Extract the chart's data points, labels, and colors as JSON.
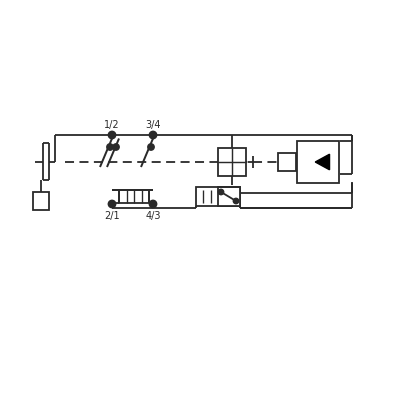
{
  "bg": "#ffffff",
  "lc": "#2a2a2a",
  "lw": 1.3,
  "fs": 7.0,
  "labels": [
    "1/2",
    "2/1",
    "3/4",
    "4/3"
  ]
}
